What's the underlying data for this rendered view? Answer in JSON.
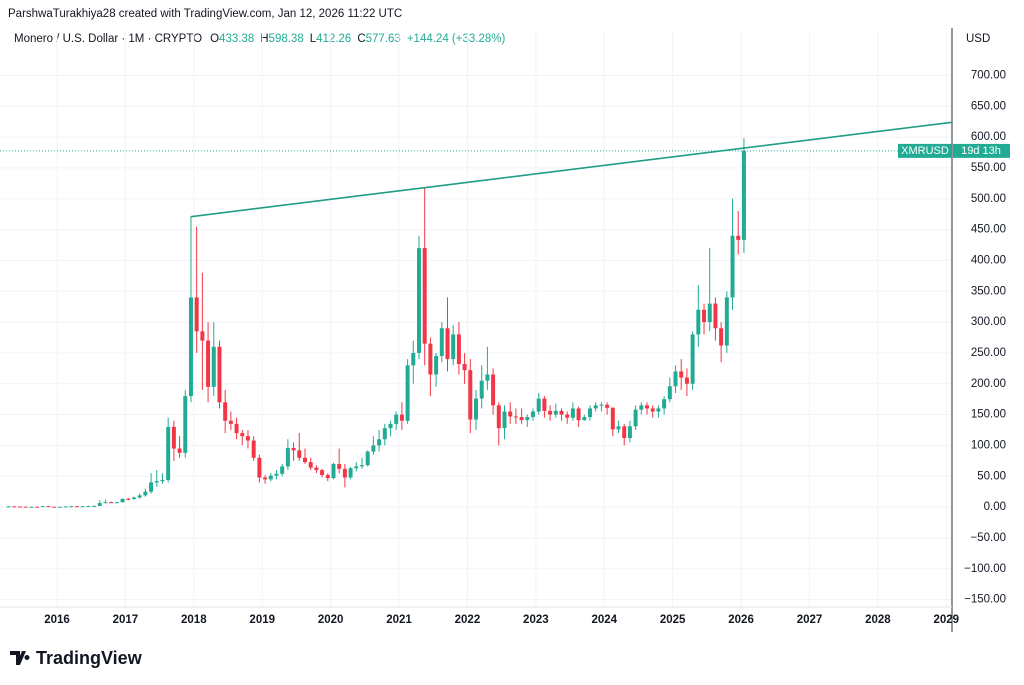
{
  "attribution": "ParshwaTurakhiya28 created with TradingView.com, Jan 12, 2026 11:22 UTC",
  "logo": "TradingView",
  "chart_data": {
    "type": "candlestick",
    "title": "Monero / U.S. Dollar · 1M · CRYPTO",
    "quote": [
      {
        "key": "O",
        "value": 433.38
      },
      {
        "key": "H",
        "value": 598.38
      },
      {
        "key": "L",
        "value": 412.26
      },
      {
        "key": "C",
        "value": 577.63
      }
    ],
    "change": "+144.24 (+33.28%)",
    "currency": "USD",
    "symbol_tag": "XMRUSD",
    "countdown": "19d 13h",
    "up_color": "#22ab94",
    "down_color": "#f23645",
    "trendline": {
      "color": "#1f9e86",
      "x": [
        "2017-12",
        "2021-05"
      ],
      "y": [
        471,
        518
      ]
    },
    "x": [
      "2015-04",
      "2015-05",
      "2015-06",
      "2015-07",
      "2015-08",
      "2015-09",
      "2015-10",
      "2015-11",
      "2015-12",
      "2016-01",
      "2016-02",
      "2016-03",
      "2016-04",
      "2016-05",
      "2016-06",
      "2016-07",
      "2016-08",
      "2016-09",
      "2016-10",
      "2016-11",
      "2016-12",
      "2017-01",
      "2017-02",
      "2017-03",
      "2017-04",
      "2017-05",
      "2017-06",
      "2017-07",
      "2017-08",
      "2017-09",
      "2017-10",
      "2017-11",
      "2017-12",
      "2018-01",
      "2018-02",
      "2018-03",
      "2018-04",
      "2018-05",
      "2018-06",
      "2018-07",
      "2018-08",
      "2018-09",
      "2018-10",
      "2018-11",
      "2018-12",
      "2019-01",
      "2019-02",
      "2019-03",
      "2019-04",
      "2019-05",
      "2019-06",
      "2019-07",
      "2019-08",
      "2019-09",
      "2019-10",
      "2019-11",
      "2019-12",
      "2020-01",
      "2020-02",
      "2020-03",
      "2020-04",
      "2020-05",
      "2020-06",
      "2020-07",
      "2020-08",
      "2020-09",
      "2020-10",
      "2020-11",
      "2020-12",
      "2021-01",
      "2021-02",
      "2021-03",
      "2021-04",
      "2021-05",
      "2021-06",
      "2021-07",
      "2021-08",
      "2021-09",
      "2021-10",
      "2021-11",
      "2021-12",
      "2022-01",
      "2022-02",
      "2022-03",
      "2022-04",
      "2022-05",
      "2022-06",
      "2022-07",
      "2022-08",
      "2022-09",
      "2022-10",
      "2022-11",
      "2022-12",
      "2023-01",
      "2023-02",
      "2023-03",
      "2023-04",
      "2023-05",
      "2023-06",
      "2023-07",
      "2023-08",
      "2023-09",
      "2023-10",
      "2023-11",
      "2023-12",
      "2024-01",
      "2024-02",
      "2024-03",
      "2024-04",
      "2024-05",
      "2024-06",
      "2024-07",
      "2024-08",
      "2024-09",
      "2024-10",
      "2024-11",
      "2024-12",
      "2025-01",
      "2025-02",
      "2025-03",
      "2025-04",
      "2025-05",
      "2025-06",
      "2025-07",
      "2025-08",
      "2025-09",
      "2025-10",
      "2025-11",
      "2025-12",
      "2026-01"
    ],
    "open": [
      1.0,
      1.2,
      0.9,
      0.8,
      0.6,
      0.7,
      0.5,
      1.5,
      0.6,
      0.5,
      0.5,
      1.1,
      1.4,
      1.3,
      1.3,
      1.8,
      1.9,
      6.5,
      8.0,
      7.2,
      7.9,
      13.5,
      13.2,
      15.5,
      19,
      25,
      40,
      42,
      44,
      130,
      95,
      88,
      180,
      340,
      285,
      270,
      195,
      260,
      170,
      140,
      135,
      120,
      115,
      108,
      80,
      48,
      45,
      51,
      54,
      66,
      96,
      92,
      80,
      73,
      64,
      60,
      52,
      47,
      70,
      62,
      48,
      63,
      66,
      68,
      90,
      100,
      110,
      128,
      135,
      150,
      140,
      230,
      250,
      420,
      265,
      215,
      245,
      290,
      240,
      280,
      232,
      222,
      142,
      176,
      205,
      215,
      165,
      128,
      155,
      147,
      146,
      141,
      146,
      155,
      176,
      156,
      150,
      156,
      150,
      145,
      160,
      141,
      146,
      160,
      165,
      166,
      161,
      126,
      131,
      112,
      131,
      158,
      165,
      160,
      155,
      160,
      175,
      196,
      220,
      210,
      200,
      280,
      320,
      300,
      330,
      290,
      262,
      340,
      440,
      433.38
    ],
    "high": [
      1.5,
      1.3,
      1.0,
      0.9,
      0.8,
      0.8,
      2.0,
      1.6,
      0.7,
      0.7,
      1.2,
      1.6,
      1.6,
      1.5,
      2.0,
      2.5,
      11,
      12,
      9,
      8.5,
      14,
      15,
      17,
      22,
      30,
      55,
      60,
      55,
      145,
      140,
      115,
      190,
      471,
      455,
      380,
      300,
      300,
      270,
      190,
      155,
      145,
      125,
      125,
      115,
      85,
      52,
      55,
      60,
      70,
      110,
      105,
      120,
      95,
      80,
      68,
      62,
      55,
      72,
      95,
      70,
      65,
      73,
      80,
      92,
      115,
      125,
      135,
      140,
      155,
      170,
      240,
      270,
      440,
      518,
      275,
      250,
      300,
      340,
      295,
      300,
      250,
      240,
      190,
      230,
      260,
      225,
      170,
      165,
      170,
      160,
      160,
      150,
      160,
      185,
      180,
      165,
      168,
      160,
      155,
      170,
      163,
      150,
      165,
      170,
      170,
      170,
      162,
      140,
      135,
      140,
      165,
      170,
      170,
      165,
      165,
      180,
      210,
      230,
      240,
      225,
      285,
      360,
      330,
      420,
      340,
      300,
      350,
      500,
      480,
      598.38
    ],
    "low": [
      0.8,
      0.8,
      0.6,
      0.5,
      0.5,
      0.4,
      0.5,
      0.5,
      0.4,
      0.4,
      0.5,
      1.0,
      1.1,
      1.1,
      1.2,
      1.6,
      1.8,
      6,
      6.5,
      6.5,
      7.5,
      11,
      12,
      14,
      17,
      22,
      33,
      38,
      40,
      75,
      80,
      80,
      170,
      250,
      190,
      170,
      180,
      160,
      120,
      125,
      110,
      100,
      95,
      75,
      40,
      38,
      42,
      45,
      50,
      60,
      75,
      75,
      70,
      60,
      55,
      48,
      42,
      45,
      55,
      32,
      45,
      58,
      62,
      66,
      85,
      90,
      100,
      115,
      125,
      125,
      135,
      200,
      240,
      230,
      180,
      195,
      235,
      220,
      230,
      215,
      200,
      120,
      125,
      160,
      190,
      150,
      100,
      110,
      135,
      135,
      135,
      130,
      140,
      150,
      145,
      140,
      145,
      140,
      135,
      140,
      130,
      140,
      140,
      155,
      155,
      150,
      115,
      120,
      100,
      105,
      125,
      150,
      150,
      145,
      145,
      150,
      170,
      185,
      190,
      180,
      190,
      260,
      280,
      285,
      270,
      235,
      250,
      320,
      410,
      412.26
    ],
    "close": [
      1.2,
      0.9,
      0.8,
      0.6,
      0.7,
      0.5,
      1.5,
      0.6,
      0.5,
      0.5,
      1.1,
      1.4,
      1.3,
      1.3,
      1.8,
      1.9,
      6.5,
      8.0,
      7.2,
      7.9,
      13.5,
      13.2,
      15.5,
      19,
      25,
      40,
      42,
      44,
      130,
      95,
      88,
      180,
      340,
      285,
      270,
      195,
      260,
      170,
      140,
      135,
      120,
      115,
      108,
      80,
      48,
      45,
      51,
      54,
      66,
      96,
      92,
      80,
      73,
      64,
      60,
      52,
      47,
      70,
      62,
      48,
      63,
      66,
      68,
      90,
      100,
      110,
      128,
      135,
      150,
      140,
      230,
      250,
      420,
      265,
      215,
      245,
      290,
      240,
      280,
      232,
      222,
      142,
      176,
      205,
      215,
      165,
      128,
      155,
      147,
      146,
      141,
      146,
      155,
      176,
      156,
      150,
      156,
      150,
      145,
      160,
      141,
      146,
      160,
      165,
      166,
      161,
      126,
      131,
      112,
      131,
      158,
      165,
      160,
      155,
      160,
      175,
      196,
      220,
      210,
      200,
      280,
      320,
      300,
      330,
      290,
      262,
      340,
      440,
      433.38,
      577.63
    ],
    "xlim": [
      "2015-03",
      "2029-02"
    ],
    "xticks": [
      "2016",
      "2017",
      "2018",
      "2019",
      "2020",
      "2021",
      "2022",
      "2023",
      "2024",
      "2025",
      "2026",
      "2027",
      "2028",
      "2029"
    ],
    "ylim": [
      -162,
      738
    ],
    "yticks": [
      {
        "value": 700,
        "label": "700.00"
      },
      {
        "value": 650,
        "label": "650.00"
      },
      {
        "value": 600,
        "label": "600.00"
      },
      {
        "value": 550,
        "label": "550.00"
      },
      {
        "value": 500,
        "label": "500.00"
      },
      {
        "value": 450,
        "label": "450.00"
      },
      {
        "value": 400,
        "label": "400.00"
      },
      {
        "value": 350,
        "label": "350.00"
      },
      {
        "value": 300,
        "label": "300.00"
      },
      {
        "value": 250,
        "label": "250.00"
      },
      {
        "value": 200,
        "label": "200.00"
      },
      {
        "value": 150,
        "label": "150.00"
      },
      {
        "value": 100,
        "label": "100.00"
      },
      {
        "value": 50,
        "label": "50.00"
      },
      {
        "value": 0,
        "label": "0.00"
      },
      {
        "value": -50,
        "label": "−50.00"
      },
      {
        "value": -100,
        "label": "−100.00"
      },
      {
        "value": -150,
        "label": "−150.00"
      }
    ],
    "grid": true
  }
}
